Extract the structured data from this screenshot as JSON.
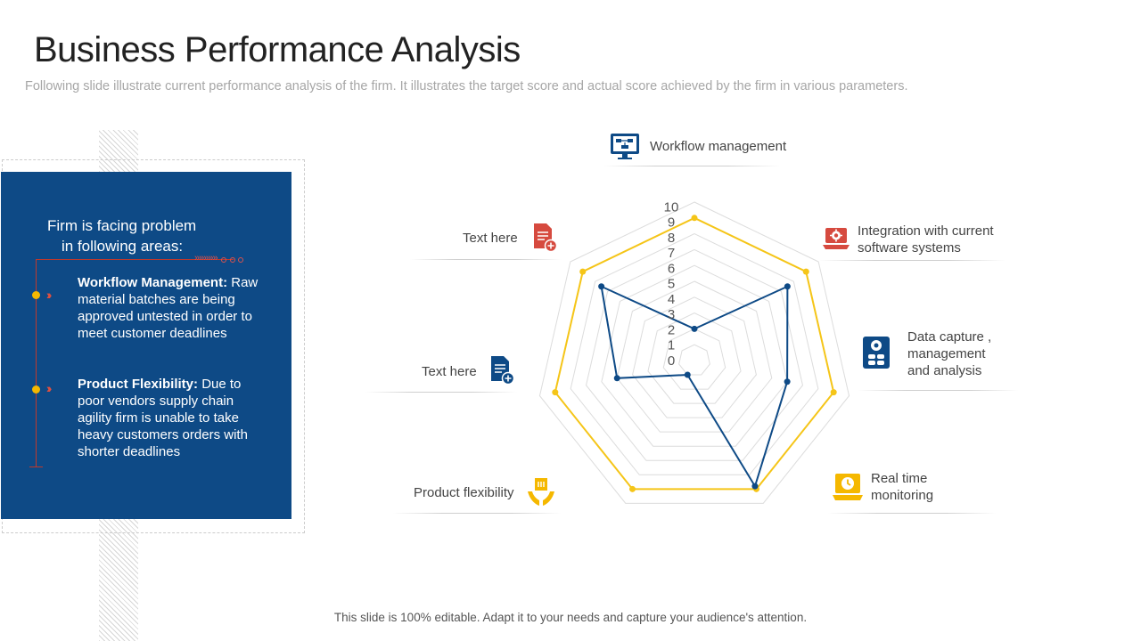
{
  "header": {
    "title": "Business Performance Analysis",
    "subtitle": "Following slide illustrate current performance analysis of the firm. It illustrates the target score and actual score achieved by the firm in various parameters."
  },
  "panel": {
    "heading_line1": "Firm is facing problem",
    "heading_line2": "in following areas:",
    "items": [
      {
        "title": "Workflow Management:",
        "text": "Raw material batches are being approved untested in order to meet customer deadlines"
      },
      {
        "title": "Product Flexibility:",
        "text": "Due to poor vendors supply chain agility firm is unable to take heavy customers orders with shorter deadlines"
      }
    ]
  },
  "labels": {
    "workflow": "Workflow management",
    "integration_1": "Integration with current",
    "integration_2": "software systems",
    "data_1": "Data capture ,",
    "data_2": "management",
    "data_3": "and analysis",
    "realtime_1": "Real time",
    "realtime_2": "monitoring",
    "product": "Product flexibility",
    "text_here_1": "Text here",
    "text_here_2": "Text here"
  },
  "footer": "This slide is 100% editable. Adapt it to your needs and capture your audience's attention.",
  "colors": {
    "target": "#f5c518",
    "actual": "#0e4a86",
    "panel": "#0e4a86",
    "accent": "#c0392b"
  },
  "icons": {
    "workflow": "monitor-flowchart-icon",
    "integration": "laptop-gear-icon",
    "data": "database-gear-icon",
    "realtime": "laptop-clock-icon",
    "product": "hands-box-icon",
    "text1": "document-add-icon",
    "text2": "document-add-icon"
  },
  "chart_data": {
    "type": "radar",
    "categories": [
      "Workflow management",
      "Integration with current software systems",
      "Data capture , management and analysis",
      "Real time monitoring",
      "Product flexibility",
      "Text here",
      "Text here"
    ],
    "ticks": [
      "0",
      "1",
      "2",
      "3",
      "4",
      "5",
      "6",
      "7",
      "8",
      "9",
      "10"
    ],
    "rlim": [
      0,
      10
    ],
    "series": [
      {
        "values": [
          9,
          9,
          9,
          9,
          9,
          9,
          9
        ]
      },
      {
        "values": [
          2,
          7.5,
          6,
          8.8,
          1,
          5,
          7.5
        ]
      }
    ]
  }
}
